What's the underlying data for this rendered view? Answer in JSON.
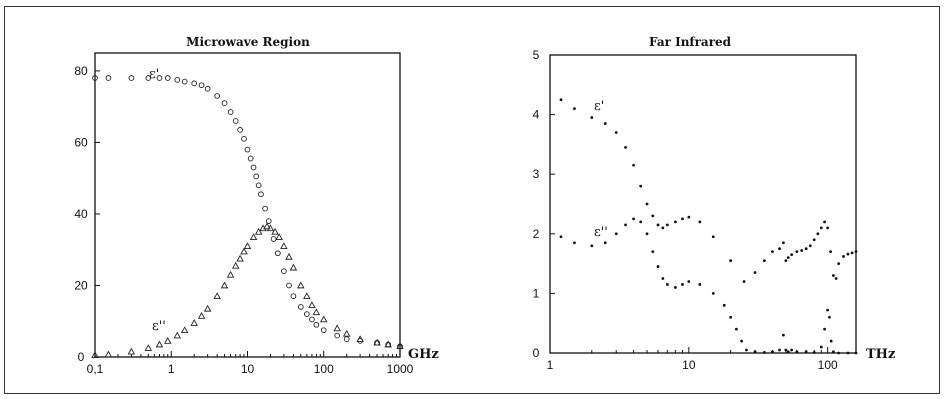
{
  "chart_data": [
    {
      "type": "scatter",
      "title": "Microwave Region",
      "x_scale": "log",
      "xlim": [
        0.1,
        1000
      ],
      "ylim": [
        0,
        85
      ],
      "x_ticks": [
        0.1,
        1,
        10,
        100,
        1000
      ],
      "x_tick_labels": [
        "0,1",
        "1",
        "10",
        "100",
        "1000"
      ],
      "y_ticks": [
        0,
        20,
        40,
        60,
        80
      ],
      "y_tick_labels": [
        "0",
        "20",
        "40",
        "60",
        "80"
      ],
      "x_unit": "GHz",
      "series": [
        {
          "name": "ε'",
          "marker": "circle",
          "x": [
            0.1,
            0.15,
            0.3,
            0.5,
            0.7,
            0.9,
            1.2,
            1.5,
            2,
            2.5,
            3,
            4,
            5,
            6,
            7,
            8,
            9,
            10,
            11,
            12,
            13,
            14,
            15,
            17,
            19,
            22,
            25,
            30,
            35,
            40,
            50,
            60,
            70,
            80,
            100,
            150,
            200,
            300,
            500,
            700,
            1000
          ],
          "y": [
            78,
            78,
            78,
            78,
            78,
            78,
            77.5,
            77,
            76.5,
            76,
            75,
            73,
            71,
            68.5,
            66,
            63.5,
            61,
            58,
            55.5,
            53,
            50.5,
            48,
            45.5,
            41.5,
            38,
            33,
            29,
            24,
            20,
            17,
            14,
            12,
            10.5,
            9,
            7.5,
            6,
            5,
            4.5,
            4,
            3.5,
            3
          ]
        },
        {
          "name": "ε''",
          "marker": "triangle",
          "x": [
            0.1,
            0.15,
            0.3,
            0.5,
            0.7,
            0.9,
            1.2,
            1.5,
            2,
            2.5,
            3,
            4,
            5,
            6,
            7,
            8,
            9,
            10,
            12,
            14,
            16,
            18,
            20,
            23,
            26,
            30,
            35,
            40,
            50,
            60,
            70,
            80,
            100,
            150,
            200,
            300,
            500,
            700,
            1000
          ],
          "y": [
            0.5,
            0.7,
            1.5,
            2.5,
            3.5,
            4.5,
            6,
            7.5,
            9.5,
            11.5,
            13.5,
            17,
            20,
            23,
            25.5,
            27.5,
            29.5,
            31,
            33.5,
            35,
            36,
            36.5,
            36,
            35,
            33.5,
            31,
            28,
            25,
            20,
            17,
            14.5,
            12.5,
            10.5,
            8,
            6.5,
            5,
            4,
            3.5,
            3
          ]
        }
      ]
    },
    {
      "type": "scatter",
      "title": "Far  Infrared",
      "x_scale": "log",
      "xlim": [
        1,
        160
      ],
      "ylim": [
        0,
        5
      ],
      "x_ticks": [
        1,
        10,
        100
      ],
      "x_tick_labels": [
        "1",
        "10",
        "100"
      ],
      "y_ticks": [
        0,
        1,
        2,
        3,
        4,
        5
      ],
      "y_tick_labels": [
        "0",
        "1",
        "2",
        "3",
        "4",
        "5"
      ],
      "x_unit": "THz",
      "series": [
        {
          "name": "ε'",
          "marker": "dot",
          "x": [
            1.2,
            1.5,
            2,
            2.5,
            3,
            3.5,
            4,
            4.5,
            5,
            5.5,
            6,
            6.5,
            7,
            8,
            9,
            10,
            12,
            15,
            20,
            25,
            30,
            35,
            40,
            45,
            48,
            50,
            52,
            55,
            60,
            65,
            70,
            75,
            80,
            85,
            90,
            95,
            100,
            105,
            110,
            115,
            120,
            130,
            140,
            150,
            160
          ],
          "y": [
            4.25,
            4.1,
            3.95,
            3.85,
            3.7,
            3.45,
            3.15,
            2.8,
            2.5,
            2.3,
            2.15,
            2.1,
            2.15,
            2.2,
            2.25,
            2.28,
            2.2,
            1.95,
            1.55,
            1.2,
            1.35,
            1.55,
            1.7,
            1.75,
            1.85,
            1.55,
            1.6,
            1.65,
            1.7,
            1.72,
            1.75,
            1.8,
            1.9,
            2.0,
            2.1,
            2.2,
            2.1,
            1.7,
            1.3,
            1.25,
            1.5,
            1.62,
            1.66,
            1.68,
            1.7
          ]
        },
        {
          "name": "ε''",
          "marker": "dot",
          "x": [
            1.2,
            1.5,
            2,
            2.5,
            3,
            3.5,
            4,
            4.5,
            5,
            5.5,
            6,
            6.5,
            7,
            8,
            9,
            10,
            12,
            15,
            18,
            20,
            22,
            24,
            26,
            30,
            35,
            40,
            45,
            48,
            50,
            52,
            55,
            60,
            70,
            80,
            90,
            95,
            100,
            103,
            106,
            110,
            120,
            140,
            160
          ],
          "y": [
            1.95,
            1.85,
            1.8,
            1.85,
            2.0,
            2.15,
            2.25,
            2.2,
            2.0,
            1.7,
            1.45,
            1.25,
            1.15,
            1.1,
            1.15,
            1.2,
            1.15,
            1.0,
            0.8,
            0.6,
            0.4,
            0.2,
            0.05,
            0.02,
            0.01,
            0.02,
            0.05,
            0.3,
            0.05,
            0.02,
            0.05,
            0.02,
            0.02,
            0.01,
            0.1,
            0.4,
            0.72,
            0.6,
            0.2,
            0.02,
            0.0,
            0.0,
            0.0
          ]
        }
      ]
    }
  ]
}
